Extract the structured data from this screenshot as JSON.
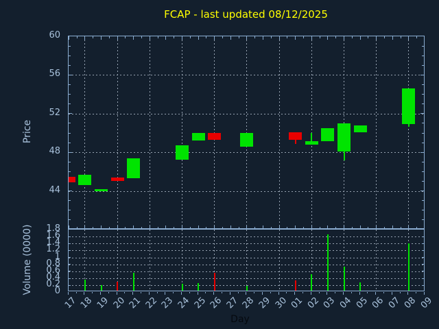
{
  "title": {
    "text": "FCAP - last updated 08/12/2025"
  },
  "colors": {
    "background": "#131f2d",
    "border": "#8badd1",
    "grid": "#97a3b2",
    "tick_text": "#a9c2dc",
    "title_text": "#ffff00",
    "xlabel_text": "#05090f",
    "up": "#00e400",
    "down": "#e80000"
  },
  "chart_data": {
    "type": "candlestick",
    "symbol": "FCAP",
    "title": "FCAP - last updated 08/12/2025",
    "x_axis_label": "Day",
    "x_categories": [
      "17",
      "18",
      "19",
      "20",
      "21",
      "22",
      "23",
      "24",
      "25",
      "26",
      "27",
      "28",
      "29",
      "30",
      "01",
      "02",
      "03",
      "04",
      "05",
      "06",
      "07",
      "08",
      "09"
    ],
    "grid_on_categories": [
      "18",
      "20",
      "22",
      "24",
      "26",
      "28",
      "30",
      "02",
      "04",
      "06",
      "08"
    ],
    "price_axis": {
      "label": "Price",
      "min": 40,
      "max": 60,
      "major_tick_labels": [
        "44",
        "48",
        "52",
        "56",
        "60"
      ],
      "major_tick_values": [
        44,
        48,
        52,
        56,
        60
      ],
      "gridline_values": [
        44,
        48,
        52,
        56
      ]
    },
    "volume_axis": {
      "label": "Volume (0000)",
      "min": 0,
      "max": 1.8,
      "tick_labels": [
        "0",
        "0.2",
        "0.4",
        "0.6",
        "0.8",
        "1",
        "1.2",
        "1.4",
        "1.6",
        "1.8"
      ],
      "tick_values": [
        0,
        0.2,
        0.4,
        0.6,
        0.8,
        1,
        1.2,
        1.4,
        1.6,
        1.8
      ],
      "gridline_values": [
        0.2,
        0.4,
        0.6,
        0.8,
        1,
        1.2,
        1.4,
        1.6
      ]
    },
    "candles": [
      {
        "day": "17",
        "open": 45.45,
        "close": 44.9
      },
      {
        "day": "18",
        "open": 44.6,
        "close": 45.7
      },
      {
        "day": "19",
        "open": 44.0,
        "close": 44.15
      },
      {
        "day": "20",
        "open": 45.4,
        "close": 45.0
      },
      {
        "day": "21",
        "open": 45.3,
        "close": 47.4
      },
      {
        "day": "24",
        "open": 47.25,
        "close": 48.7
      },
      {
        "day": "25",
        "open": 49.2,
        "close": 50.0
      },
      {
        "day": "26",
        "open": 50.0,
        "close": 49.3
      },
      {
        "day": "28",
        "open": 48.6,
        "close": 50.0
      },
      {
        "day": "01",
        "open": 50.05,
        "close": 49.3,
        "low": 48.85
      },
      {
        "day": "02",
        "open": 48.8,
        "close": 49.15,
        "high": 50.0
      },
      {
        "day": "03",
        "open": 49.15,
        "close": 50.5
      },
      {
        "day": "04",
        "open": 48.1,
        "close": 51.0,
        "low": 47.15
      },
      {
        "day": "05",
        "open": 50.1,
        "close": 50.75
      },
      {
        "day": "08",
        "open": 50.9,
        "close": 54.6,
        "low": 50.65
      }
    ],
    "volumes": [
      {
        "day": "18",
        "value": 0.32
      },
      {
        "day": "19",
        "value": 0.17
      },
      {
        "day": "20",
        "value": 0.27
      },
      {
        "day": "21",
        "value": 0.52
      },
      {
        "day": "24",
        "value": 0.21
      },
      {
        "day": "25",
        "value": 0.22
      },
      {
        "day": "26",
        "value": 0.52
      },
      {
        "day": "28",
        "value": 0.14
      },
      {
        "day": "01",
        "value": 0.3
      },
      {
        "day": "02",
        "value": 0.47
      },
      {
        "day": "03",
        "value": 1.63
      },
      {
        "day": "04",
        "value": 0.7
      },
      {
        "day": "05",
        "value": 0.24
      },
      {
        "day": "08",
        "value": 1.36
      }
    ]
  }
}
